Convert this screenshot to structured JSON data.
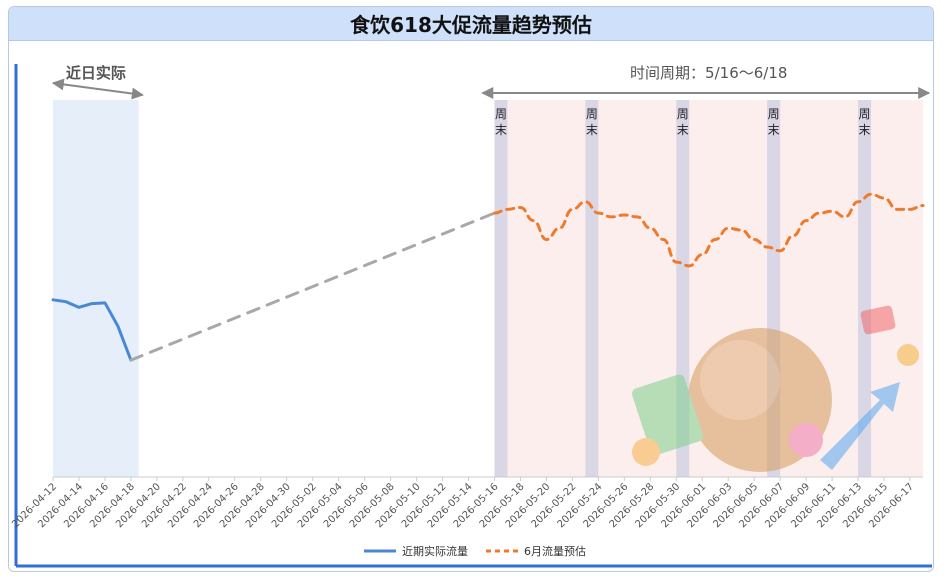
{
  "chart_data": {
    "type": "line",
    "title": "食饮618大促流量趋势预估",
    "x_tick_labels": [
      "2026-04-12",
      "2026-04-14",
      "2026-04-16",
      "2026-04-18",
      "2026-04-20",
      "2026-04-22",
      "2026-04-24",
      "2026-04-26",
      "2026-04-28",
      "2026-04-30",
      "2026-05-02",
      "2026-05-04",
      "2026-05-06",
      "2026-05-08",
      "2026-05-10",
      "2026-05-12",
      "2026-05-14",
      "2026-05-16",
      "2026-05-18",
      "2026-05-20",
      "2026-05-22",
      "2026-05-24",
      "2026-05-26",
      "2026-05-28",
      "2026-05-30",
      "2026-06-01",
      "2026-06-03",
      "2026-06-05",
      "2026-06-07",
      "2026-06-09",
      "2026-06-11",
      "2026-06-13",
      "2026-06-15",
      "2026-06-17"
    ],
    "x_range": [
      "2026-04-12",
      "2026-06-18"
    ],
    "y_range": [
      0,
      100
    ],
    "grid": false,
    "legend_position": "bottom",
    "series": [
      {
        "name": "近期实际流量",
        "color": "#4a87d6",
        "style": "solid",
        "points": [
          [
            "2026-04-12",
            47
          ],
          [
            "2026-04-13",
            46.5
          ],
          [
            "2026-04-14",
            45
          ],
          [
            "2026-04-15",
            46
          ],
          [
            "2026-04-16",
            46.2
          ],
          [
            "2026-04-17",
            40
          ],
          [
            "2026-04-18",
            31
          ]
        ]
      },
      {
        "name": "",
        "color": "#a8a8a8",
        "style": "dashed",
        "points": [
          [
            "2026-04-18",
            31
          ],
          [
            "2026-05-16",
            70
          ]
        ]
      },
      {
        "name": "6月流量预估",
        "color": "#f07a2c",
        "style": "dashed",
        "points": [
          [
            "2026-05-16",
            70
          ],
          [
            "2026-05-17",
            71
          ],
          [
            "2026-05-18",
            71.5
          ],
          [
            "2026-05-19",
            68
          ],
          [
            "2026-05-20",
            63
          ],
          [
            "2026-05-21",
            66
          ],
          [
            "2026-05-22",
            71
          ],
          [
            "2026-05-23",
            73
          ],
          [
            "2026-05-24",
            70
          ],
          [
            "2026-05-25",
            69
          ],
          [
            "2026-05-26",
            69.5
          ],
          [
            "2026-05-27",
            69
          ],
          [
            "2026-05-28",
            66
          ],
          [
            "2026-05-29",
            63
          ],
          [
            "2026-05-30",
            57
          ],
          [
            "2026-05-31",
            56
          ],
          [
            "2026-06-01",
            59
          ],
          [
            "2026-06-02",
            63
          ],
          [
            "2026-06-03",
            66
          ],
          [
            "2026-06-04",
            65.5
          ],
          [
            "2026-06-05",
            63
          ],
          [
            "2026-06-06",
            61
          ],
          [
            "2026-06-07",
            60
          ],
          [
            "2026-06-08",
            64
          ],
          [
            "2026-06-09",
            68
          ],
          [
            "2026-06-10",
            70
          ],
          [
            "2026-06-11",
            70.5
          ],
          [
            "2026-06-12",
            69
          ],
          [
            "2026-06-13",
            73
          ],
          [
            "2026-06-14",
            75
          ],
          [
            "2026-06-15",
            74
          ],
          [
            "2026-06-16",
            71
          ],
          [
            "2026-06-17",
            71
          ],
          [
            "2026-06-18",
            72
          ]
        ]
      }
    ],
    "shaded_regions": [
      {
        "label": "近日实际",
        "from": "2026-04-12",
        "to": "2026-04-18",
        "color": "#e6eefa"
      },
      {
        "label": "时间周期：5/16～6/18",
        "from": "2026-05-16",
        "to": "2026-06-18",
        "color": "#fdeeee"
      }
    ],
    "weekend_bands": [
      {
        "label": "周末",
        "from": "2026-05-16",
        "to": "2026-05-17"
      },
      {
        "label": "周末",
        "from": "2026-05-23",
        "to": "2026-05-24"
      },
      {
        "label": "周末",
        "from": "2026-05-30",
        "to": "2026-05-31"
      },
      {
        "label": "周末",
        "from": "2026-06-06",
        "to": "2026-06-07"
      },
      {
        "label": "周末",
        "from": "2026-06-13",
        "to": "2026-06-14"
      }
    ],
    "background_image": "618-sale-illustration"
  }
}
